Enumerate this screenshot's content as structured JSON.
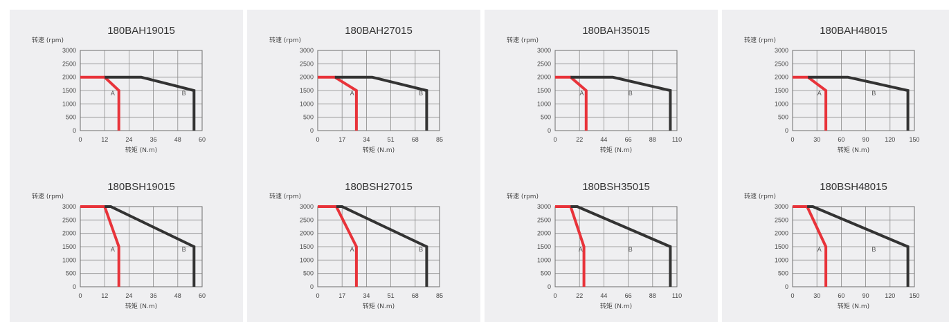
{
  "chart_data": [
    {
      "type": "line",
      "title": "180BAH19015",
      "ylabel": "转速 (rpm)",
      "xlabel": "转矩 (N.m)",
      "xticks": [
        0,
        12,
        24,
        36,
        48,
        60
      ],
      "yticks": [
        0,
        500,
        1000,
        1500,
        2000,
        2500,
        3000
      ],
      "xlim": [
        0,
        60
      ],
      "ylim": [
        0,
        3000
      ],
      "grid": true,
      "zone_labels": [
        {
          "text": "A",
          "x": 16,
          "y": 1400
        },
        {
          "text": "B",
          "x": 51,
          "y": 1400
        }
      ],
      "series": [
        {
          "color": "#e8333a",
          "points": [
            [
              0,
              2000
            ],
            [
              12,
              2000
            ],
            [
              19,
              1500
            ],
            [
              19,
              0
            ]
          ]
        },
        {
          "color": "#333333",
          "points": [
            [
              12,
              2000
            ],
            [
              30,
              2000
            ],
            [
              56,
              1500
            ],
            [
              56,
              0
            ]
          ]
        }
      ]
    },
    {
      "type": "line",
      "title": "180BAH27015",
      "ylabel": "转速 (rpm)",
      "xlabel": "转矩 (N.m)",
      "xticks": [
        0,
        17,
        34,
        51,
        68,
        85
      ],
      "yticks": [
        0,
        500,
        1000,
        1500,
        2000,
        2500,
        3000
      ],
      "xlim": [
        0,
        85
      ],
      "ylim": [
        0,
        3000
      ],
      "grid": true,
      "zone_labels": [
        {
          "text": "A",
          "x": 24,
          "y": 1400
        },
        {
          "text": "B",
          "x": 72,
          "y": 1400
        }
      ],
      "series": [
        {
          "color": "#e8333a",
          "points": [
            [
              0,
              2000
            ],
            [
              12,
              2000
            ],
            [
              27,
              1500
            ],
            [
              27,
              0
            ]
          ]
        },
        {
          "color": "#333333",
          "points": [
            [
              12,
              2000
            ],
            [
              38,
              2000
            ],
            [
              76,
              1500
            ],
            [
              76,
              0
            ]
          ]
        }
      ]
    },
    {
      "type": "line",
      "title": "180BAH35015",
      "ylabel": "转速 (rpm)",
      "xlabel": "转矩 (N.m)",
      "xticks": [
        0,
        22,
        44,
        66,
        88,
        110
      ],
      "yticks": [
        0,
        500,
        1000,
        1500,
        2000,
        2500,
        3000
      ],
      "xlim": [
        0,
        110
      ],
      "ylim": [
        0,
        3000
      ],
      "grid": true,
      "zone_labels": [
        {
          "text": "A",
          "x": 24,
          "y": 1400
        },
        {
          "text": "B",
          "x": 68,
          "y": 1400
        }
      ],
      "series": [
        {
          "color": "#e8333a",
          "points": [
            [
              0,
              2000
            ],
            [
              14,
              2000
            ],
            [
              28,
              1500
            ],
            [
              28,
              0
            ]
          ]
        },
        {
          "color": "#333333",
          "points": [
            [
              14,
              2000
            ],
            [
              52,
              2000
            ],
            [
              104,
              1500
            ],
            [
              104,
              0
            ]
          ]
        }
      ]
    },
    {
      "type": "line",
      "title": "180BAH48015",
      "ylabel": "转速 (rpm)",
      "xlabel": "转矩 (N.m)",
      "xticks": [
        0,
        30,
        60,
        90,
        120,
        150
      ],
      "yticks": [
        0,
        500,
        1000,
        1500,
        2000,
        2500,
        3000
      ],
      "xlim": [
        0,
        150
      ],
      "ylim": [
        0,
        3000
      ],
      "grid": true,
      "zone_labels": [
        {
          "text": "A",
          "x": 33,
          "y": 1400
        },
        {
          "text": "B",
          "x": 100,
          "y": 1400
        }
      ],
      "series": [
        {
          "color": "#e8333a",
          "points": [
            [
              0,
              2000
            ],
            [
              19,
              2000
            ],
            [
              41,
              1500
            ],
            [
              41,
              0
            ]
          ]
        },
        {
          "color": "#333333",
          "points": [
            [
              19,
              2000
            ],
            [
              68,
              2000
            ],
            [
              142,
              1500
            ],
            [
              142,
              0
            ]
          ]
        }
      ]
    },
    {
      "type": "line",
      "title": "180BSH19015",
      "ylabel": "转速 (rpm)",
      "xlabel": "转矩 (N.m)",
      "xticks": [
        0,
        12,
        24,
        36,
        48,
        60
      ],
      "yticks": [
        0,
        500,
        1000,
        1500,
        2000,
        2500,
        3000
      ],
      "xlim": [
        0,
        60
      ],
      "ylim": [
        0,
        3000
      ],
      "grid": true,
      "zone_labels": [
        {
          "text": "A",
          "x": 16,
          "y": 1400
        },
        {
          "text": "B",
          "x": 51,
          "y": 1400
        }
      ],
      "series": [
        {
          "color": "#e8333a",
          "points": [
            [
              0,
              3000
            ],
            [
              12,
              3000
            ],
            [
              19,
              1500
            ],
            [
              19,
              0
            ]
          ]
        },
        {
          "color": "#333333",
          "points": [
            [
              12,
              3000
            ],
            [
              15,
              3000
            ],
            [
              56,
              1500
            ],
            [
              56,
              0
            ]
          ]
        }
      ]
    },
    {
      "type": "line",
      "title": "180BSH27015",
      "ylabel": "转速 (rpm)",
      "xlabel": "转矩 (N.m)",
      "xticks": [
        0,
        17,
        34,
        51,
        68,
        85
      ],
      "yticks": [
        0,
        500,
        1000,
        1500,
        2000,
        2500,
        3000
      ],
      "xlim": [
        0,
        85
      ],
      "ylim": [
        0,
        3000
      ],
      "grid": true,
      "zone_labels": [
        {
          "text": "A",
          "x": 24,
          "y": 1400
        },
        {
          "text": "B",
          "x": 72,
          "y": 1400
        }
      ],
      "series": [
        {
          "color": "#e8333a",
          "points": [
            [
              0,
              3000
            ],
            [
              13,
              3000
            ],
            [
              27,
              1500
            ],
            [
              27,
              0
            ]
          ]
        },
        {
          "color": "#333333",
          "points": [
            [
              13,
              3000
            ],
            [
              17,
              3000
            ],
            [
              76,
              1500
            ],
            [
              76,
              0
            ]
          ]
        }
      ]
    },
    {
      "type": "line",
      "title": "180BSH35015",
      "ylabel": "转速 (rpm)",
      "xlabel": "转矩 (N.m)",
      "xticks": [
        0,
        22,
        44,
        66,
        88,
        110
      ],
      "yticks": [
        0,
        500,
        1000,
        1500,
        2000,
        2500,
        3000
      ],
      "xlim": [
        0,
        110
      ],
      "ylim": [
        0,
        3000
      ],
      "grid": true,
      "zone_labels": [
        {
          "text": "A",
          "x": 23,
          "y": 1400
        },
        {
          "text": "B",
          "x": 68,
          "y": 1400
        }
      ],
      "series": [
        {
          "color": "#e8333a",
          "points": [
            [
              0,
              3000
            ],
            [
              14,
              3000
            ],
            [
              26,
              1500
            ],
            [
              26,
              0
            ]
          ]
        },
        {
          "color": "#333333",
          "points": [
            [
              14,
              3000
            ],
            [
              20,
              3000
            ],
            [
              104,
              1500
            ],
            [
              104,
              0
            ]
          ]
        }
      ]
    },
    {
      "type": "line",
      "title": "180BSH48015",
      "ylabel": "转速 (rpm)",
      "xlabel": "转矩 (N.m)",
      "xticks": [
        0,
        30,
        60,
        90,
        120,
        150
      ],
      "yticks": [
        0,
        500,
        1000,
        1500,
        2000,
        2500,
        3000
      ],
      "xlim": [
        0,
        150
      ],
      "ylim": [
        0,
        3000
      ],
      "grid": true,
      "zone_labels": [
        {
          "text": "A",
          "x": 33,
          "y": 1400
        },
        {
          "text": "B",
          "x": 100,
          "y": 1400
        }
      ],
      "series": [
        {
          "color": "#e8333a",
          "points": [
            [
              0,
              3000
            ],
            [
              18,
              3000
            ],
            [
              41,
              1500
            ],
            [
              41,
              0
            ]
          ]
        },
        {
          "color": "#333333",
          "points": [
            [
              18,
              3000
            ],
            [
              25,
              3000
            ],
            [
              142,
              1500
            ],
            [
              142,
              0
            ]
          ]
        }
      ]
    }
  ]
}
